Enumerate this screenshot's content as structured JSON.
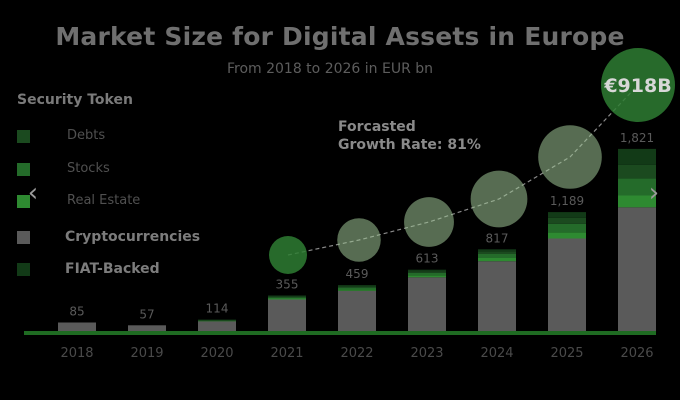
{
  "chart_data": {
    "type": "bar",
    "stacked": true,
    "title": "Market Size for Digital Assets in Europe",
    "subtitle": "From 2018 to 2026 in EUR bn",
    "categories": [
      "2018",
      "2019",
      "2020",
      "2021",
      "2022",
      "2023",
      "2024",
      "2025",
      "2026"
    ],
    "totals": [
      85,
      57,
      114,
      355,
      459,
      613,
      817,
      1189,
      1821
    ],
    "total_labels": [
      "85",
      "57",
      "114",
      "355",
      "459",
      "613",
      "817",
      "1,189",
      "1,821"
    ],
    "series": [
      {
        "name": "Cryptocurrencies",
        "values": [
          85,
          57,
          97,
          315,
          402,
          537,
          698,
          925,
          1237
        ]
      },
      {
        "name": "Real Estate",
        "values": [
          0,
          0,
          4,
          10,
          15,
          20,
          32,
          62,
          118
        ]
      },
      {
        "name": "Stocks",
        "values": [
          0,
          0,
          4,
          12,
          17,
          24,
          40,
          85,
          172
        ]
      },
      {
        "name": "Debts",
        "values": [
          0,
          0,
          4,
          10,
          13,
          17,
          27,
          60,
          134
        ]
      },
      {
        "name": "FIAT-Backed",
        "values": [
          0,
          0,
          5,
          8,
          12,
          15,
          20,
          57,
          160
        ]
      }
    ],
    "bubble_values": [
      150,
      230,
      340,
      480,
      640,
      918
    ],
    "highlight_label": "€918B",
    "annotation": [
      "Forcasted",
      "Growth Rate: 81%"
    ],
    "ylim": [
      0,
      1900
    ],
    "xlabel": "",
    "ylabel": ""
  },
  "legend": {
    "title": "Security Token",
    "items": [
      {
        "label": "Debts",
        "color": "#1b4a1f",
        "bold": false
      },
      {
        "label": "Stocks",
        "color": "#246b2a",
        "bold": false
      },
      {
        "label": "Real Estate",
        "color": "#2e8a31",
        "bold": false
      },
      {
        "label": "Cryptocurrencies",
        "color": "#5a5a5a",
        "bold": true
      },
      {
        "label": "FIAT-Backed",
        "color": "#123a17",
        "bold": true
      }
    ]
  },
  "colors": {
    "baseline": "#1f6b22",
    "bubble": "#9fc596",
    "bubble_first": "#2e7d32",
    "bubble_highlight": "#2e7d32",
    "year_label": "#4a4a4a",
    "value_label": "#5a5a5a"
  },
  "nav": {
    "prev_icon": "‹",
    "next_icon": "›"
  }
}
